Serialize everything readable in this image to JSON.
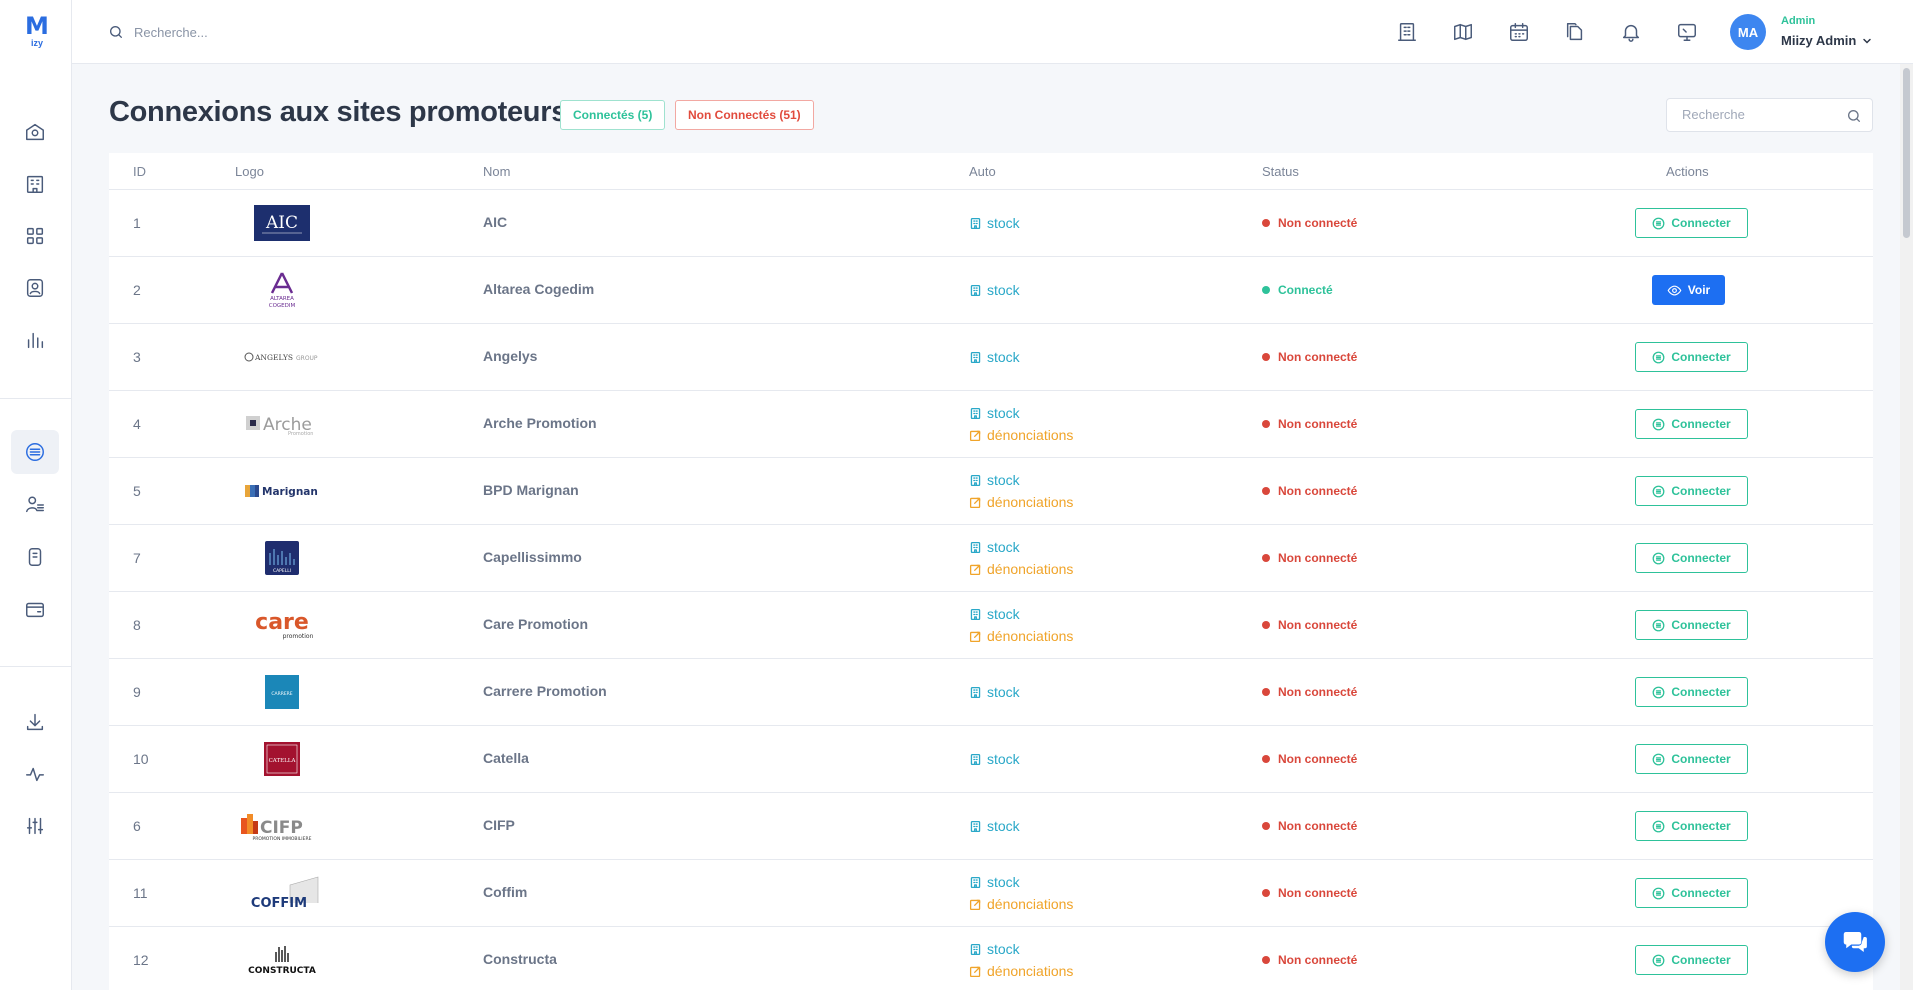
{
  "app": {
    "logo_main": "M",
    "logo_sub": "izy"
  },
  "topbar": {
    "search_placeholder": "Recherche...",
    "icons": [
      "building-icon",
      "map-icon",
      "calendar-icon",
      "files-icon",
      "bell-icon",
      "monitor-icon"
    ],
    "user": {
      "initials": "MA",
      "role": "Admin",
      "name": "Miizy Admin"
    }
  },
  "sidebar": {
    "items": [
      "home-icon",
      "building-icon",
      "grid-icon",
      "contact-icon",
      "chart-icon",
      "connections-icon",
      "user-list-icon",
      "document-icon",
      "wallet-icon",
      "download-icon",
      "activity-icon",
      "sliders-icon"
    ],
    "active": "connections-icon"
  },
  "page": {
    "title": "Connexions aux sites promoteurs",
    "filter_connected": "Connectés (5)",
    "filter_unconnected": "Non Connectés (51)",
    "search_placeholder": "Recherche"
  },
  "table": {
    "headers": {
      "id": "ID",
      "logo": "Logo",
      "name": "Nom",
      "auto": "Auto",
      "status": "Status",
      "actions": "Actions"
    },
    "rows": [
      {
        "id": "1",
        "logo": "AIC",
        "name": "AIC",
        "auto": [
          "stock"
        ],
        "status": "Non connecté",
        "connected": false,
        "action": "Connecter"
      },
      {
        "id": "2",
        "logo": "ALTAREA COGEDIM",
        "name": "Altarea Cogedim",
        "auto": [
          "stock"
        ],
        "status": "Connecté",
        "connected": true,
        "action": "Voir"
      },
      {
        "id": "3",
        "logo": "ANGELYS GROUP",
        "name": "Angelys",
        "auto": [
          "stock"
        ],
        "status": "Non connecté",
        "connected": false,
        "action": "Connecter"
      },
      {
        "id": "4",
        "logo": "Arche",
        "name": "Arche Promotion",
        "auto": [
          "stock",
          "dénonciations"
        ],
        "status": "Non connecté",
        "connected": false,
        "action": "Connecter"
      },
      {
        "id": "5",
        "logo": "Marignan",
        "name": "BPD Marignan",
        "auto": [
          "stock",
          "dénonciations"
        ],
        "status": "Non connecté",
        "connected": false,
        "action": "Connecter"
      },
      {
        "id": "7",
        "logo": "CAPELLI",
        "name": "Capellissimmo",
        "auto": [
          "stock",
          "dénonciations"
        ],
        "status": "Non connecté",
        "connected": false,
        "action": "Connecter"
      },
      {
        "id": "8",
        "logo": "care",
        "name": "Care Promotion",
        "auto": [
          "stock",
          "dénonciations"
        ],
        "status": "Non connecté",
        "connected": false,
        "action": "Connecter"
      },
      {
        "id": "9",
        "logo": "CARRERE",
        "name": "Carrere Promotion",
        "auto": [
          "stock"
        ],
        "status": "Non connecté",
        "connected": false,
        "action": "Connecter"
      },
      {
        "id": "10",
        "logo": "CATELLA",
        "name": "Catella",
        "auto": [
          "stock"
        ],
        "status": "Non connecté",
        "connected": false,
        "action": "Connecter"
      },
      {
        "id": "6",
        "logo": "CIFP",
        "name": "CIFP",
        "auto": [
          "stock"
        ],
        "status": "Non connecté",
        "connected": false,
        "action": "Connecter"
      },
      {
        "id": "11",
        "logo": "COFFIM",
        "name": "Coffim",
        "auto": [
          "stock",
          "dénonciations"
        ],
        "status": "Non connecté",
        "connected": false,
        "action": "Connecter"
      },
      {
        "id": "12",
        "logo": "CONSTRUCTA",
        "name": "Constructa",
        "auto": [
          "stock",
          "dénonciations"
        ],
        "status": "Non connecté",
        "connected": false,
        "action": "Connecter"
      }
    ]
  },
  "colors": {
    "accent": "#1d6ff2",
    "connected": "#2ec29a",
    "unconnected": "#d9473b",
    "stock": "#2aa8c8",
    "denonciations": "#f0a42a"
  }
}
